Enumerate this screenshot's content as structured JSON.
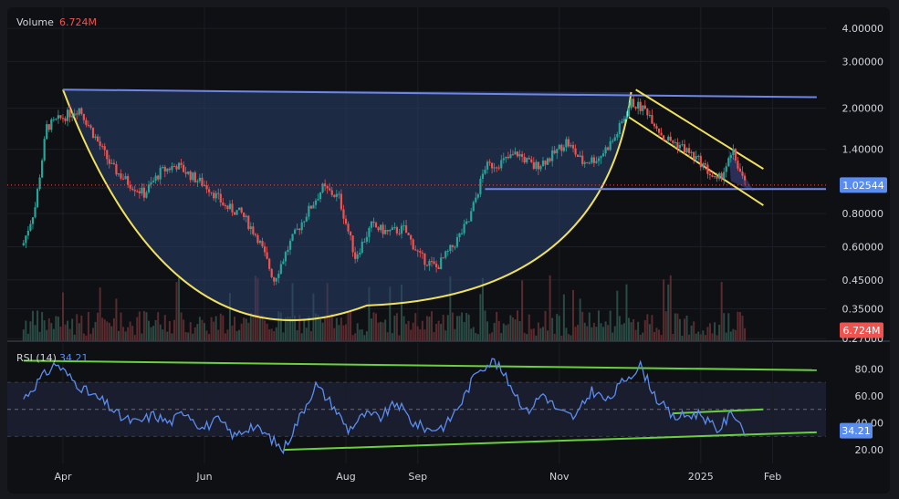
{
  "legend": {
    "volume_label": "Volume",
    "volume_value": "6.724M",
    "rsi_label": "RSI (14)",
    "rsi_value": "34.21"
  },
  "price_badge": "1.02544",
  "volume_badge": "6.724M",
  "rsi_badge": "34.21",
  "colors": {
    "up": "#26a69a",
    "down": "#ef5350",
    "rsi_line": "#5b8def",
    "cup_fill": "#2a3f6b",
    "cup_curve": "#f0e05a",
    "resistance": "#6f86e8",
    "channel": "#f0e05a",
    "trend": "#6ad03c",
    "badge_price": "#5b8def",
    "badge_volume": "#ef5350"
  },
  "chart_data": {
    "type": "candlestick",
    "scale": "log",
    "price_ticks": [
      "4.00000",
      "3.00000",
      "2.00000",
      "1.40000",
      "1.00000",
      "0.80000",
      "0.60000",
      "0.45000",
      "0.35000",
      "0.27000"
    ],
    "rsi_ticks": [
      "80.00",
      "60.00",
      "40.00",
      "20.00"
    ],
    "x_labels": [
      "Apr",
      "Jun",
      "Aug",
      "Sep",
      "Nov",
      "2025",
      "Feb"
    ],
    "last_price": 1.02544,
    "last_volume": "6.724M",
    "last_rsi": 34.21,
    "price_path": [
      [
        "2024-03-15",
        0.62
      ],
      [
        "2024-03-20",
        0.85
      ],
      [
        "2024-03-25",
        1.7
      ],
      [
        "2024-04-01",
        1.85
      ],
      [
        "2024-04-08",
        2.0
      ],
      [
        "2024-04-15",
        1.55
      ],
      [
        "2024-04-22",
        1.2
      ],
      [
        "2024-04-29",
        1.05
      ],
      [
        "2024-05-06",
        0.95
      ],
      [
        "2024-05-13",
        1.15
      ],
      [
        "2024-05-20",
        1.22
      ],
      [
        "2024-05-27",
        1.1
      ],
      [
        "2024-06-03",
        1.0
      ],
      [
        "2024-06-10",
        0.85
      ],
      [
        "2024-06-17",
        0.8
      ],
      [
        "2024-06-24",
        0.65
      ],
      [
        "2024-07-01",
        0.45
      ],
      [
        "2024-07-08",
        0.62
      ],
      [
        "2024-07-15",
        0.8
      ],
      [
        "2024-07-22",
        1.0
      ],
      [
        "2024-07-29",
        0.92
      ],
      [
        "2024-08-05",
        0.55
      ],
      [
        "2024-08-12",
        0.72
      ],
      [
        "2024-08-19",
        0.68
      ],
      [
        "2024-08-26",
        0.7
      ],
      [
        "2024-09-02",
        0.55
      ],
      [
        "2024-09-09",
        0.5
      ],
      [
        "2024-09-16",
        0.6
      ],
      [
        "2024-09-23",
        0.75
      ],
      [
        "2024-09-30",
        1.2
      ],
      [
        "2024-10-07",
        1.25
      ],
      [
        "2024-10-14",
        1.35
      ],
      [
        "2024-10-21",
        1.2
      ],
      [
        "2024-10-28",
        1.3
      ],
      [
        "2024-11-04",
        1.5
      ],
      [
        "2024-11-11",
        1.25
      ],
      [
        "2024-11-18",
        1.3
      ],
      [
        "2024-11-25",
        1.55
      ],
      [
        "2024-12-02",
        2.1
      ],
      [
        "2024-12-09",
        1.95
      ],
      [
        "2024-12-16",
        1.55
      ],
      [
        "2024-12-23",
        1.45
      ],
      [
        "2025-01-01",
        1.25
      ],
      [
        "2025-01-08",
        1.05
      ],
      [
        "2025-01-15",
        1.35
      ],
      [
        "2025-01-20",
        1.03
      ]
    ],
    "rsi_path": [
      [
        "2024-03-15",
        58
      ],
      [
        "2024-03-22",
        72
      ],
      [
        "2024-03-29",
        84
      ],
      [
        "2024-04-05",
        72
      ],
      [
        "2024-04-12",
        62
      ],
      [
        "2024-04-19",
        55
      ],
      [
        "2024-04-26",
        44
      ],
      [
        "2024-05-03",
        40
      ],
      [
        "2024-05-10",
        46
      ],
      [
        "2024-05-17",
        40
      ],
      [
        "2024-05-24",
        49
      ],
      [
        "2024-05-31",
        36
      ],
      [
        "2024-06-07",
        42
      ],
      [
        "2024-06-14",
        30
      ],
      [
        "2024-06-21",
        38
      ],
      [
        "2024-06-28",
        31
      ],
      [
        "2024-07-05",
        20
      ],
      [
        "2024-07-12",
        44
      ],
      [
        "2024-07-19",
        68
      ],
      [
        "2024-07-26",
        54
      ],
      [
        "2024-08-02",
        35
      ],
      [
        "2024-08-09",
        46
      ],
      [
        "2024-08-16",
        44
      ],
      [
        "2024-08-23",
        55
      ],
      [
        "2024-08-30",
        40
      ],
      [
        "2024-09-06",
        35
      ],
      [
        "2024-09-13",
        38
      ],
      [
        "2024-09-20",
        56
      ],
      [
        "2024-09-27",
        80
      ],
      [
        "2024-10-04",
        86
      ],
      [
        "2024-10-11",
        68
      ],
      [
        "2024-10-18",
        48
      ],
      [
        "2024-10-25",
        62
      ],
      [
        "2024-11-01",
        48
      ],
      [
        "2024-11-08",
        44
      ],
      [
        "2024-11-15",
        64
      ],
      [
        "2024-11-22",
        56
      ],
      [
        "2024-11-29",
        72
      ],
      [
        "2024-12-06",
        82
      ],
      [
        "2024-12-13",
        58
      ],
      [
        "2024-12-20",
        44
      ],
      [
        "2025-01-01",
        47
      ],
      [
        "2025-01-08",
        34
      ],
      [
        "2025-01-15",
        48
      ],
      [
        "2025-01-20",
        34
      ]
    ]
  }
}
